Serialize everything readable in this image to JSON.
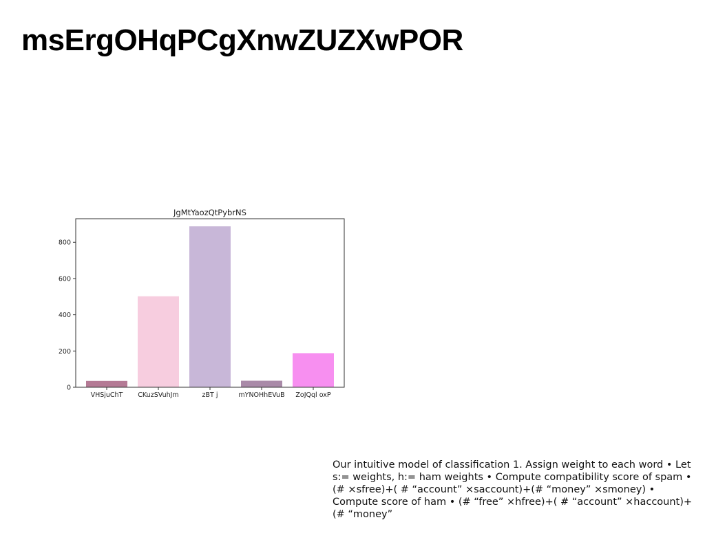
{
  "slide": {
    "title": "msErgOHqPCgXnwZUZXwPOR",
    "body": "Our intuitive model of classification 1. Assign weight to each word • Let s:= weights, h:= ham weights • Compute compatibility score of spam • (# ×sfree)+( # “account” ×saccount)+(# “money” ×smoney) • Compute score of ham • (# “free” ×hfree)+( # “account” ×haccount)+(# “money”"
  },
  "chart_data": {
    "type": "bar",
    "title": "JgMtYaozQtPybrNS",
    "xlabel": "",
    "ylabel": "",
    "categories": [
      "VHSjuChT",
      "CKuzSVuhJm",
      "zBT j",
      "mYNOHhEVuB",
      "ZoJQql oxP"
    ],
    "values": [
      35,
      502,
      888,
      36,
      188
    ],
    "colors": [
      "#b47a95",
      "#f7cddf",
      "#c8b7d8",
      "#a98aa8",
      "#f78ff0"
    ],
    "ylim": [
      0,
      930
    ],
    "yticks": [
      0,
      200,
      400,
      600,
      800
    ],
    "grid": false
  }
}
